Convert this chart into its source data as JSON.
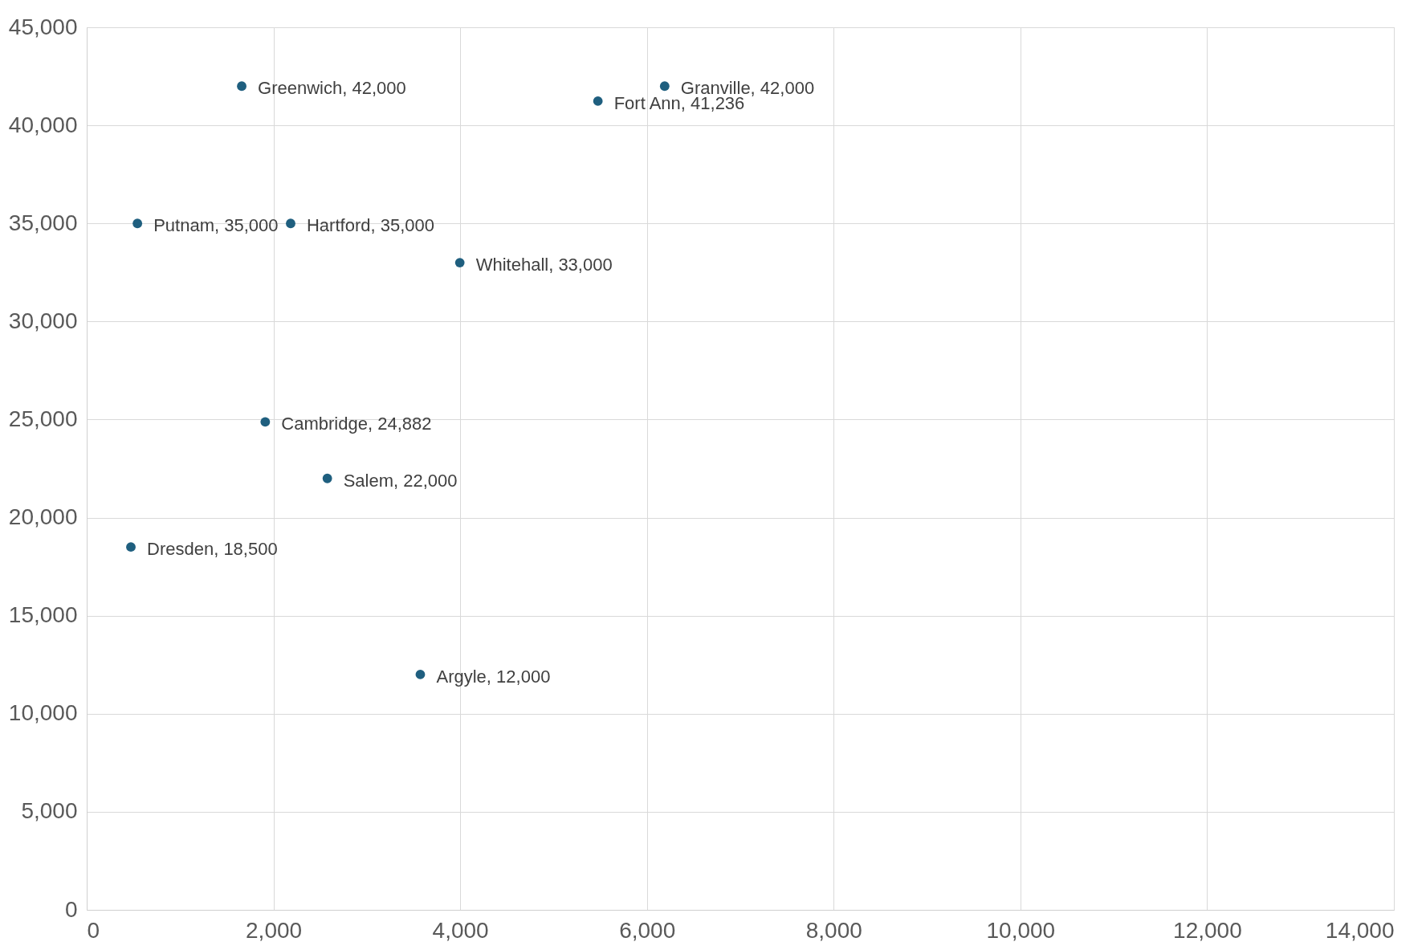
{
  "chart_data": {
    "type": "scatter",
    "x": [
      1660,
      6190,
      5475,
      543,
      2184,
      3996,
      1912,
      2577,
      473,
      3573
    ],
    "series": [
      {
        "color": "#1f5f7f",
        "values": [
          42000,
          42000,
          41236,
          35000,
          35000,
          33000,
          24882,
          22000,
          18500,
          12000
        ]
      }
    ],
    "value_labels": [
      "Greenwich, 42,000",
      "Granville, 42,000",
      "Fort Ann, 41,236",
      "Putnam, 35,000",
      "Hartford, 35,000",
      "Whitehall, 33,000",
      "Cambridge, 24,882",
      "Salem, 22,000",
      "Dresden, 18,500",
      "Argyle, 12,000"
    ],
    "xlim": [
      0,
      14000
    ],
    "xticks": [
      0,
      {
        "value": 2000,
        "label": "2,000"
      },
      {
        "value": 4000,
        "label": "4,000"
      },
      {
        "value": 6000,
        "label": "6,000"
      },
      {
        "value": 8000,
        "label": "8,000"
      },
      {
        "value": 10000,
        "label": "10,000"
      },
      {
        "value": 12000,
        "label": "12,000"
      },
      {
        "value": 14000,
        "label": "14,000"
      }
    ],
    "ylim": [
      0,
      45000
    ],
    "yticks": [
      0,
      {
        "value": 5000,
        "label": "5,000"
      },
      {
        "value": 10000,
        "label": "10,000"
      },
      {
        "value": 15000,
        "label": "15,000"
      },
      {
        "value": 20000,
        "label": "20,000"
      },
      {
        "value": 25000,
        "label": "25,000"
      },
      {
        "value": 30000,
        "label": "30,000"
      },
      {
        "value": 35000,
        "label": "35,000"
      },
      {
        "value": 40000,
        "label": "40,000"
      },
      {
        "value": 45000,
        "label": "45,000"
      }
    ],
    "grid": true,
    "marker": "circle"
  }
}
